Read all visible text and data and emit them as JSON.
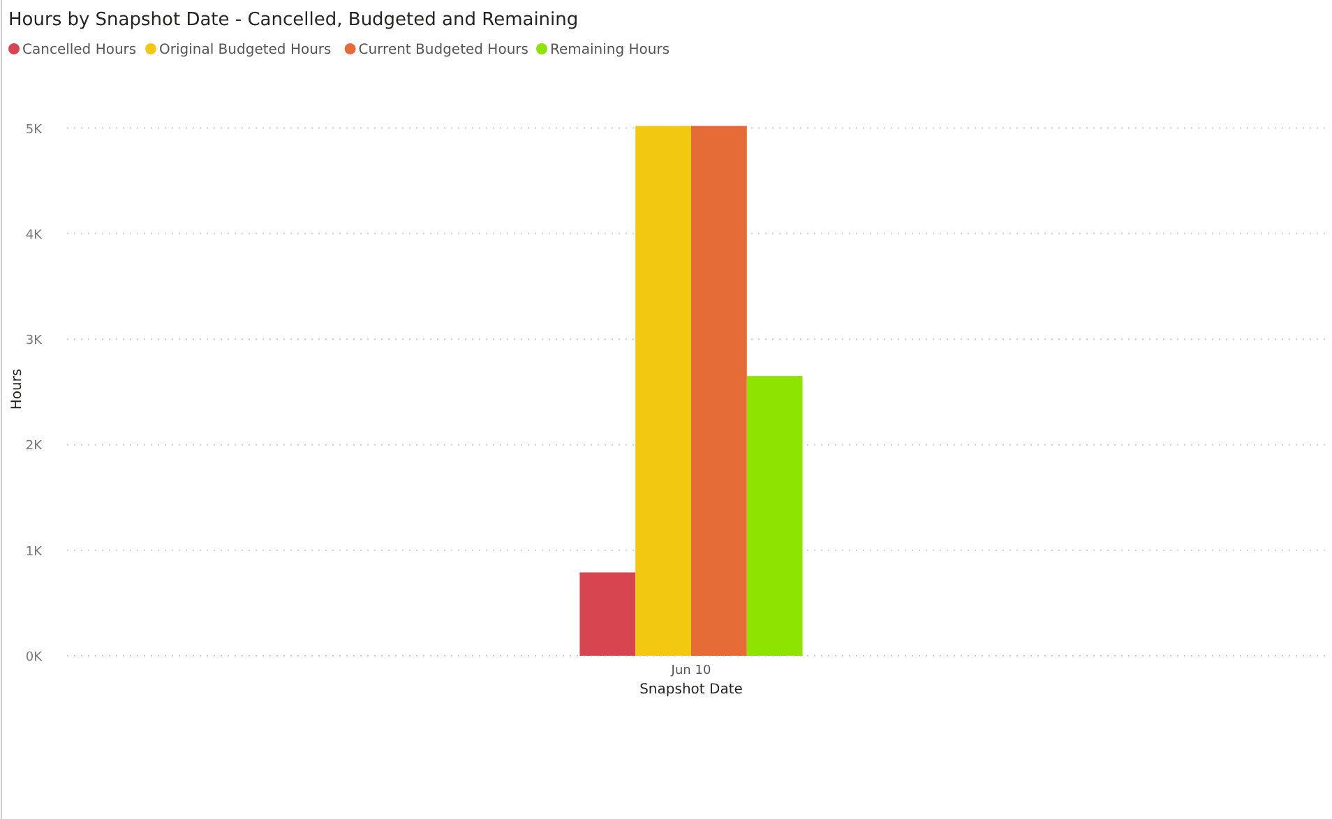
{
  "chart_data": {
    "type": "bar",
    "title": "Hours by Snapshot Date - Cancelled, Budgeted and Remaining",
    "xlabel": "Snapshot Date",
    "ylabel": "Hours",
    "categories": [
      "Jun 10"
    ],
    "series": [
      {
        "name": "Cancelled Hours",
        "color": "#d64550",
        "values": [
          790
        ]
      },
      {
        "name": "Original Budgeted Hours",
        "color": "#f2c811",
        "values": [
          5020
        ]
      },
      {
        "name": "Current Budgeted Hours",
        "color": "#e66c37",
        "values": [
          5020
        ]
      },
      {
        "name": "Remaining Hours",
        "color": "#8ee300",
        "values": [
          2650
        ]
      }
    ],
    "ylim": [
      0,
      5050
    ],
    "yticks": [
      {
        "value": 0,
        "label": "0K"
      },
      {
        "value": 1000,
        "label": "1K"
      },
      {
        "value": 2000,
        "label": "2K"
      },
      {
        "value": 3000,
        "label": "3K"
      },
      {
        "value": 4000,
        "label": "4K"
      },
      {
        "value": 5000,
        "label": "5K"
      }
    ],
    "grid": "y",
    "legend": "top left"
  }
}
